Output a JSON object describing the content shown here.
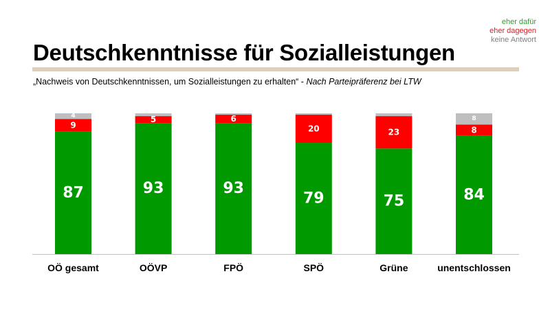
{
  "header": {
    "title": "Deutschkenntnisse für Sozialleistungen",
    "subtitle_quote": "„Nachweis von Deutschkenntnissen, um Sozialleistungen zu erhalten“ - ",
    "subtitle_note": "Nach Parteipräferenz bei LTW"
  },
  "chart_data": {
    "type": "bar",
    "stacked": true,
    "title": "Deutschkenntnisse für Sozialleistungen",
    "xlabel": "",
    "ylabel": "",
    "ylim": [
      0,
      100
    ],
    "grid": false,
    "legend_position": "top-right",
    "categories": [
      "OÖ gesamt",
      "OÖVP",
      "FPÖ",
      "SPÖ",
      "Grüne",
      "unentschlossen"
    ],
    "series": [
      {
        "name": "eher dafür",
        "color": "#009900",
        "values": [
          87,
          93,
          93,
          79,
          75,
          84
        ],
        "labels": [
          "87",
          "93",
          "93",
          "79",
          "75",
          "84"
        ]
      },
      {
        "name": "eher dagegen",
        "color": "#ff0000",
        "values": [
          9,
          5,
          6,
          20,
          23,
          8
        ],
        "labels": [
          "9",
          "5",
          "6",
          "20",
          "23",
          "8"
        ]
      },
      {
        "name": "keine Antwort",
        "color": "#bfbfbf",
        "values": [
          4,
          2,
          1,
          1,
          2,
          8
        ],
        "labels": [
          "4",
          "",
          "",
          "",
          "",
          "8"
        ]
      }
    ]
  },
  "legend": [
    {
      "label": "eher dafür",
      "color": "#2e9e2e"
    },
    {
      "label": "eher dagegen",
      "color": "#d0252d"
    },
    {
      "label": "keine Antwort",
      "color": "#808080"
    }
  ]
}
